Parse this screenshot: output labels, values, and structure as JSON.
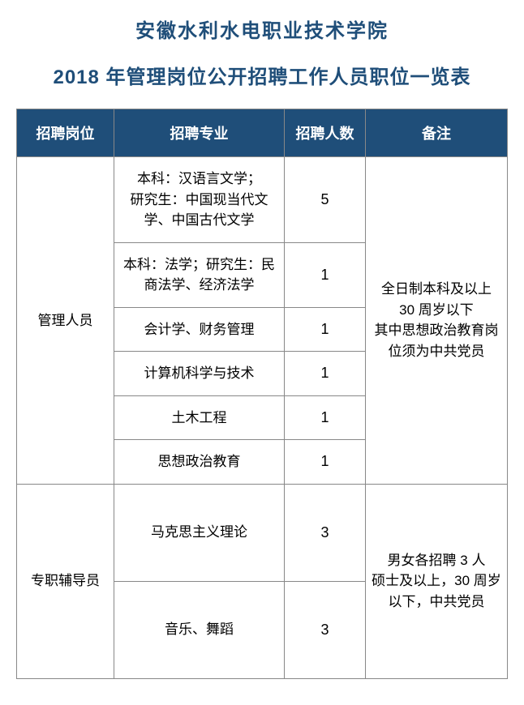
{
  "title_line1": "安徽水利水电职业技术学院",
  "title_line2": "2018 年管理岗位公开招聘工作人员职位一览表",
  "table": {
    "columns": [
      "招聘岗位",
      "招聘专业",
      "招聘人数",
      "备注"
    ],
    "groups": [
      {
        "position": "管理人员",
        "note": "全日制本科及以上\n30 周岁以下\n其中思想政治教育岗位须为中共党员",
        "rows": [
          {
            "major": "本科：汉语言文学；\n研究生：中国现当代文学、中国古代文学",
            "count": "5"
          },
          {
            "major": "本科：法学；研究生：民商法学、经济法学",
            "count": "1"
          },
          {
            "major": "会计学、财务管理",
            "count": "1"
          },
          {
            "major": "计算机科学与技术",
            "count": "1"
          },
          {
            "major": "土木工程",
            "count": "1"
          },
          {
            "major": "思想政治教育",
            "count": "1"
          }
        ]
      },
      {
        "position": "专职辅导员",
        "note": "男女各招聘 3 人\n硕士及以上，30 周岁以下，中共党员",
        "rows": [
          {
            "major": "马克思主义理论",
            "count": "3"
          },
          {
            "major": "音乐、舞蹈",
            "count": "3"
          }
        ]
      }
    ]
  },
  "colors": {
    "header_bg": "#1f4e79",
    "header_fg": "#ffffff",
    "title_color": "#1f4e79",
    "border": "#888888",
    "text": "#000000",
    "background": "#ffffff"
  }
}
